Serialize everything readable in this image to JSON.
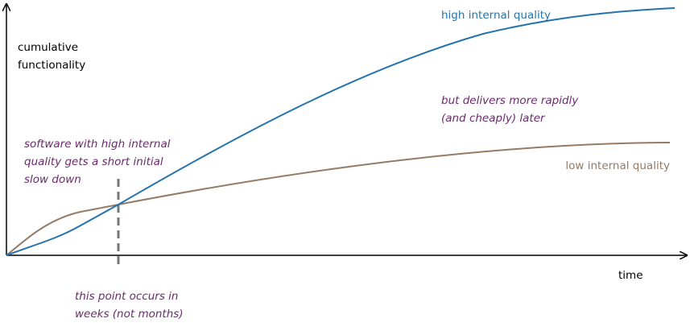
{
  "axes": {
    "y_label": [
      "cumulative",
      "functionality"
    ],
    "x_label": "time"
  },
  "curves": {
    "high": "high internal quality",
    "low": "low internal quality"
  },
  "annotations": {
    "slow_down": [
      "software with high internal",
      "quality gets a short initial",
      "slow down"
    ],
    "later": [
      "but delivers more rapidly",
      "(and cheaply) later"
    ],
    "point": [
      "this point occurs in",
      "weeks (not months)"
    ]
  }
}
